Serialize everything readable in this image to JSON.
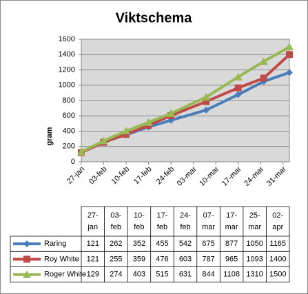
{
  "chart_data": {
    "type": "line",
    "title": "Viktschema",
    "y_label": "gram",
    "x": [
      {
        "value": 27,
        "label": "27-jan"
      },
      {
        "value": 34,
        "label": "03-feb"
      },
      {
        "value": 41,
        "label": "10-feb"
      },
      {
        "value": 48,
        "label": "17-feb"
      },
      {
        "value": 55,
        "label": "24-feb"
      },
      {
        "value": 66,
        "label": "07-mar"
      },
      {
        "value": 76,
        "label": "17-mar"
      },
      {
        "value": 84,
        "label": "25-mar"
      },
      {
        "value": 92,
        "label": "02-apr"
      }
    ],
    "series": [
      {
        "name": "Raring",
        "color": "#4a7ebb",
        "marker": "diamond",
        "values": [
          121,
          262,
          352,
          455,
          542,
          675,
          877,
          1050,
          1165
        ]
      },
      {
        "name": "Roy White",
        "color": "#be4b48",
        "marker": "square",
        "values": [
          121,
          255,
          359,
          476,
          603,
          787,
          965,
          1093,
          1400
        ]
      },
      {
        "name": "Roger White",
        "color": "#98b954",
        "marker": "triangle",
        "values": [
          129,
          274,
          403,
          515,
          631,
          844,
          1108,
          1310,
          1500
        ]
      }
    ],
    "xlim": [
      27,
      92
    ],
    "xticks": [
      {
        "value": 27,
        "label": "27-jan"
      },
      {
        "value": 34,
        "label": "03-feb"
      },
      {
        "value": 41,
        "label": "10-feb"
      },
      {
        "value": 48,
        "label": "17-feb"
      },
      {
        "value": 55,
        "label": "24-feb"
      },
      {
        "value": 62,
        "label": "03-mar"
      },
      {
        "value": 69,
        "label": "10-mar"
      },
      {
        "value": 76,
        "label": "17-mar"
      },
      {
        "value": 83,
        "label": "24-mar"
      },
      {
        "value": 90,
        "label": "31-mar"
      }
    ],
    "ylim": [
      0,
      1600
    ],
    "yticks": [
      0,
      200,
      400,
      600,
      800,
      1000,
      1200,
      1400,
      1600
    ],
    "grid": true
  }
}
